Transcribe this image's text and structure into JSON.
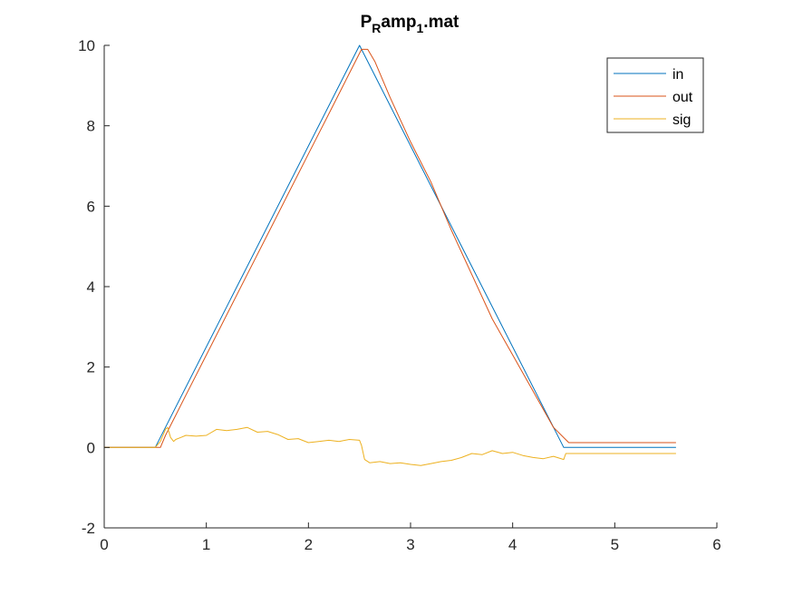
{
  "chart_data": {
    "type": "line",
    "title": {
      "base": "P",
      "sub1": "R",
      "mid": "amp",
      "sub2": "1",
      "tail": ".mat"
    },
    "xlabel": "",
    "ylabel": "",
    "xlim": [
      0,
      6
    ],
    "ylim": [
      -2,
      10
    ],
    "xticks": [
      0,
      1,
      2,
      3,
      4,
      5,
      6
    ],
    "yticks": [
      -2,
      0,
      2,
      4,
      6,
      8,
      10
    ],
    "grid": false,
    "legend_position": "top-right",
    "series": [
      {
        "name": "in",
        "color": "#0072BD",
        "x": [
          0,
          0.5,
          2.5,
          4.5,
          5.6
        ],
        "y": [
          0,
          0,
          10,
          0,
          0
        ]
      },
      {
        "name": "out",
        "color": "#D95319",
        "x": [
          0,
          0.5,
          0.55,
          0.6,
          0.7,
          0.8,
          1.0,
          1.2,
          1.4,
          1.6,
          1.8,
          2.0,
          2.2,
          2.4,
          2.52,
          2.58,
          2.65,
          2.8,
          3.0,
          3.2,
          3.4,
          3.6,
          3.8,
          4.0,
          4.2,
          4.4,
          4.55,
          5.6
        ],
        "y": [
          0,
          0,
          0.0,
          0.3,
          0.8,
          1.3,
          2.3,
          3.3,
          4.3,
          5.3,
          6.3,
          7.3,
          8.3,
          9.3,
          9.9,
          9.9,
          9.6,
          8.7,
          7.6,
          6.6,
          5.4,
          4.3,
          3.2,
          2.3,
          1.4,
          0.5,
          0.12,
          0.12
        ]
      },
      {
        "name": "sig",
        "color": "#EDB120",
        "x": [
          0,
          0.5,
          0.55,
          0.6,
          0.62,
          0.65,
          0.68,
          0.7,
          0.75,
          0.8,
          0.9,
          1.0,
          1.1,
          1.2,
          1.3,
          1.4,
          1.5,
          1.6,
          1.7,
          1.8,
          1.9,
          2.0,
          2.1,
          2.2,
          2.3,
          2.4,
          2.5,
          2.52,
          2.55,
          2.6,
          2.7,
          2.8,
          2.9,
          3.0,
          3.1,
          3.2,
          3.3,
          3.4,
          3.5,
          3.6,
          3.7,
          3.8,
          3.9,
          4.0,
          4.1,
          4.2,
          4.3,
          4.4,
          4.5,
          4.52,
          5.6
        ],
        "y": [
          0,
          0,
          0.15,
          0.45,
          0.5,
          0.25,
          0.15,
          0.2,
          0.25,
          0.3,
          0.28,
          0.3,
          0.45,
          0.42,
          0.45,
          0.5,
          0.38,
          0.4,
          0.32,
          0.2,
          0.22,
          0.12,
          0.15,
          0.18,
          0.15,
          0.2,
          0.18,
          0.05,
          -0.3,
          -0.38,
          -0.35,
          -0.4,
          -0.38,
          -0.42,
          -0.45,
          -0.4,
          -0.35,
          -0.32,
          -0.25,
          -0.15,
          -0.18,
          -0.08,
          -0.15,
          -0.12,
          -0.2,
          -0.25,
          -0.28,
          -0.22,
          -0.3,
          -0.15,
          -0.15
        ]
      }
    ]
  }
}
